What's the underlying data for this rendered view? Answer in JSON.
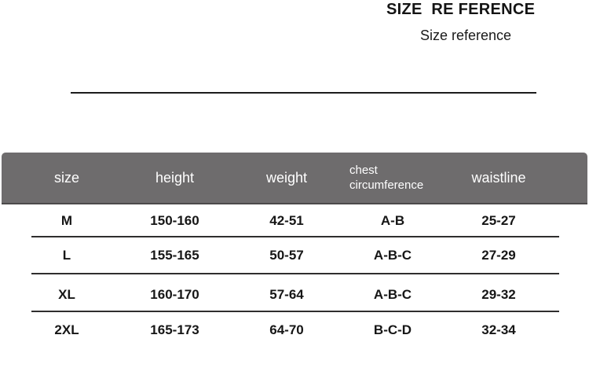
{
  "page": {
    "title": "SIZE  RE FERENCE",
    "subtitle": "Size reference"
  },
  "size_table": {
    "columns": [
      "size",
      "height",
      "weight",
      "chest\ncircumference",
      "waistline"
    ],
    "rows": [
      {
        "size": "M",
        "height": "150-160",
        "weight": "42-51",
        "chest": "A-B",
        "waistline": "25-27"
      },
      {
        "size": "L",
        "height": "155-165",
        "weight": "50-57",
        "chest": "A-B-C",
        "waistline": "27-29"
      },
      {
        "size": "XL",
        "height": "160-170",
        "weight": "57-64",
        "chest": "A-B-C",
        "waistline": "29-32"
      },
      {
        "size": "2XL",
        "height": "165-173",
        "weight": "64-70",
        "chest": "B-C-D",
        "waistline": "32-34"
      }
    ],
    "colors": {
      "header_background": "#6e6c6d",
      "header_text": "#ffffff",
      "body_text": "#161616",
      "divider": "#2f2e2e",
      "title_text": "#141414"
    }
  },
  "chart_data": {
    "type": "table",
    "title": "SIZE  RE FERENCE",
    "subtitle": "Size reference",
    "columns": [
      "size",
      "height",
      "weight",
      "chest circumference",
      "waistline"
    ],
    "rows": [
      [
        "M",
        "150-160",
        "42-51",
        "A-B",
        "25-27"
      ],
      [
        "L",
        "155-165",
        "50-57",
        "A-B-C",
        "27-29"
      ],
      [
        "XL",
        "160-170",
        "57-64",
        "A-B-C",
        "29-32"
      ],
      [
        "2XL",
        "165-173",
        "64-70",
        "B-C-D",
        "32-34"
      ]
    ]
  }
}
